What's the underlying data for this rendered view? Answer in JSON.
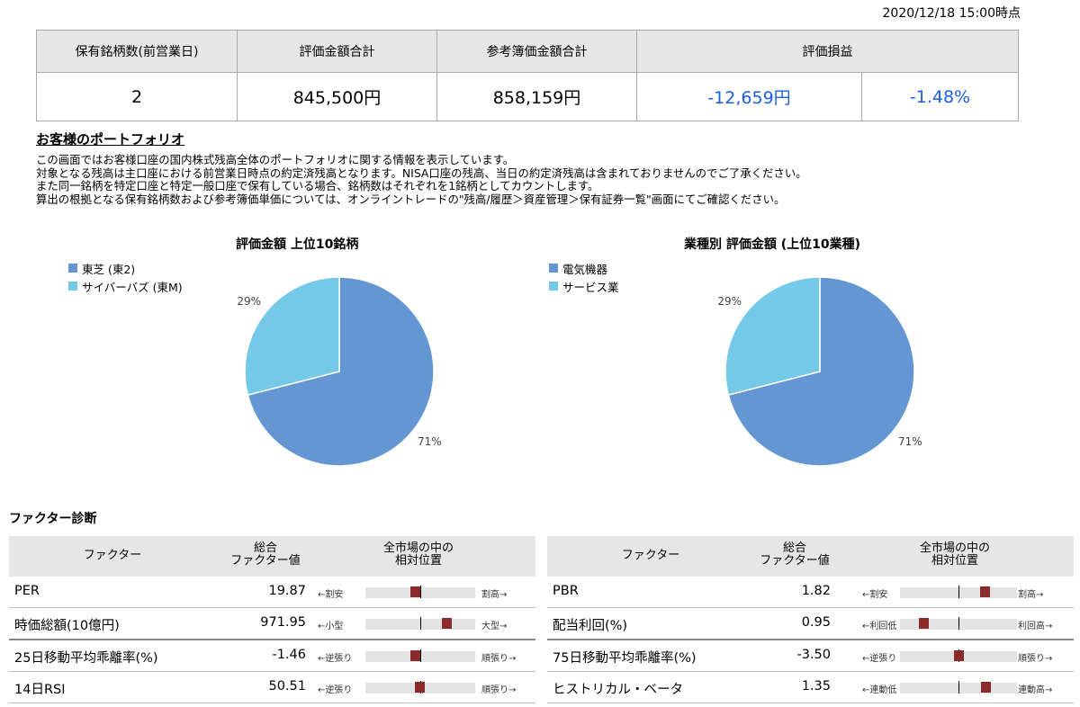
{
  "timestamp": "2020/12/18 15:00時点",
  "summary": {
    "headers": [
      "保有銘柄数(前営業日)",
      "評価金額合計",
      "参考簿価金額合計",
      "評価損益"
    ],
    "values": [
      "2",
      "845,500円",
      "858,159円",
      "-12,659円",
      "-1.48%"
    ],
    "negative_color": "#1a5fe6"
  },
  "portfolio": {
    "title": "お客様のポートフォリオ",
    "lines": [
      "この画面ではお客様口座の国内株式残高全体のポートフォリオに関する情報を表示しています。",
      "対象となる残高は主口座における前営業日時点の約定済残高となります。NISA口座の残高、当日の約定済残高は含まれておりませんのでご了承ください。",
      "また同一銘柄を特定口座と特定一般口座で保有している場合、銘柄数はそれぞれを1銘柄としてカウントします。",
      "算出の根拠となる保有銘柄数および参考簿価単価については、オンライントレードの\"残高/履歴＞資産管理＞保有証券一覧\"画面にてご確認ください。"
    ]
  },
  "chart_data": [
    {
      "type": "pie",
      "title": "評価金額 上位10銘柄",
      "labels": [
        "東芝 (東2)",
        "サイバーバズ (東M)"
      ],
      "values": [
        71,
        29
      ],
      "data_labels": [
        "71%",
        "29%"
      ],
      "colors": [
        "#6496d4",
        "#74c9e8"
      ],
      "legend": "top-left"
    },
    {
      "type": "pie",
      "title": "業種別 評価金額 (上位10業種)",
      "labels": [
        "電気機器",
        "サービス業"
      ],
      "values": [
        71,
        29
      ],
      "data_labels": [
        "71%",
        "29%"
      ],
      "colors": [
        "#6496d4",
        "#74c9e8"
      ],
      "legend": "top-left"
    }
  ],
  "factors": {
    "title": "ファクター診断",
    "col_factor": "ファクター",
    "col_value_l1": "総合",
    "col_value_l2": "ファクター値",
    "col_pos_l1": "全市場の中の",
    "col_pos_l2": "相対位置",
    "mark_color": "#8b2a2a",
    "left": [
      {
        "name": "PER",
        "value": "19.87",
        "low": "←割安",
        "high": "割高→",
        "position": 0.45
      },
      {
        "name": "時価総額(10億円)",
        "value": "971.95",
        "low": "←小型",
        "high": "大型→",
        "position": 0.74
      },
      {
        "name": "25日移動平均乖離率(%)",
        "value": "-1.46",
        "low": "←逆張り",
        "high": "順張り→",
        "position": 0.45
      },
      {
        "name": "14日RSI",
        "value": "50.51",
        "low": "←逆張り",
        "high": "順張り→",
        "position": 0.49
      }
    ],
    "right": [
      {
        "name": "PBR",
        "value": "1.82",
        "low": "←割安",
        "high": "割高→",
        "position": 0.72
      },
      {
        "name": "配当利回(%)",
        "value": "0.95",
        "low": "←利回低",
        "high": "利回高→",
        "position": 0.2
      },
      {
        "name": "75日移動平均乖離率(%)",
        "value": "-3.50",
        "low": "←逆張り",
        "high": "順張り→",
        "position": 0.5
      },
      {
        "name": "ヒストリカル・ベータ",
        "value": "1.35",
        "low": "←連動低",
        "high": "連動高→",
        "position": 0.73
      }
    ]
  }
}
